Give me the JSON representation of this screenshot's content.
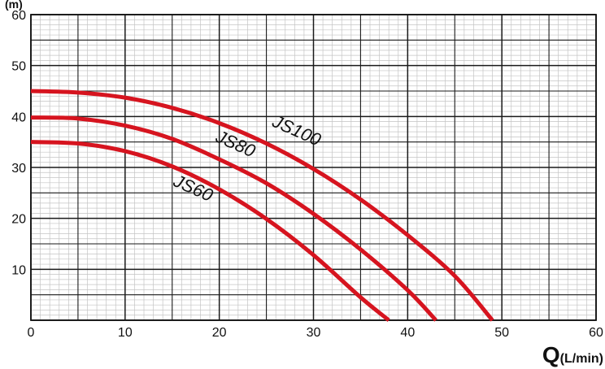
{
  "chart_data": {
    "type": "line",
    "xlabel_main": "Q",
    "xlabel_unit": "(L/min)",
    "ylabel_unit": "(m)",
    "xlim": [
      0,
      60
    ],
    "ylim": [
      0,
      60
    ],
    "x_ticks": [
      "0",
      "10",
      "20",
      "30",
      "40",
      "50",
      "60"
    ],
    "y_ticks": [
      "10",
      "20",
      "30",
      "40",
      "50",
      "60"
    ],
    "grid": "major and minor",
    "line_color": "#d6141f",
    "series": [
      {
        "name": "JS100",
        "x": [
          0,
          5,
          10,
          15,
          20,
          25,
          30,
          35,
          40,
          45,
          49
        ],
        "values": [
          45,
          44.7,
          43.7,
          41.7,
          38.7,
          34.7,
          29.7,
          23.7,
          16.7,
          8.7,
          0
        ]
      },
      {
        "name": "JS80",
        "x": [
          0,
          5,
          10,
          15,
          20,
          25,
          30,
          35,
          40,
          43
        ],
        "values": [
          39.8,
          39.6,
          38.2,
          35.6,
          31.6,
          26.9,
          20.9,
          13.9,
          5.9,
          0
        ]
      },
      {
        "name": "JS60",
        "x": [
          0,
          5,
          10,
          15,
          20,
          25,
          30,
          35,
          38
        ],
        "values": [
          35,
          34.7,
          33.2,
          30.2,
          25.7,
          19.9,
          12.8,
          4.5,
          0
        ]
      }
    ]
  }
}
